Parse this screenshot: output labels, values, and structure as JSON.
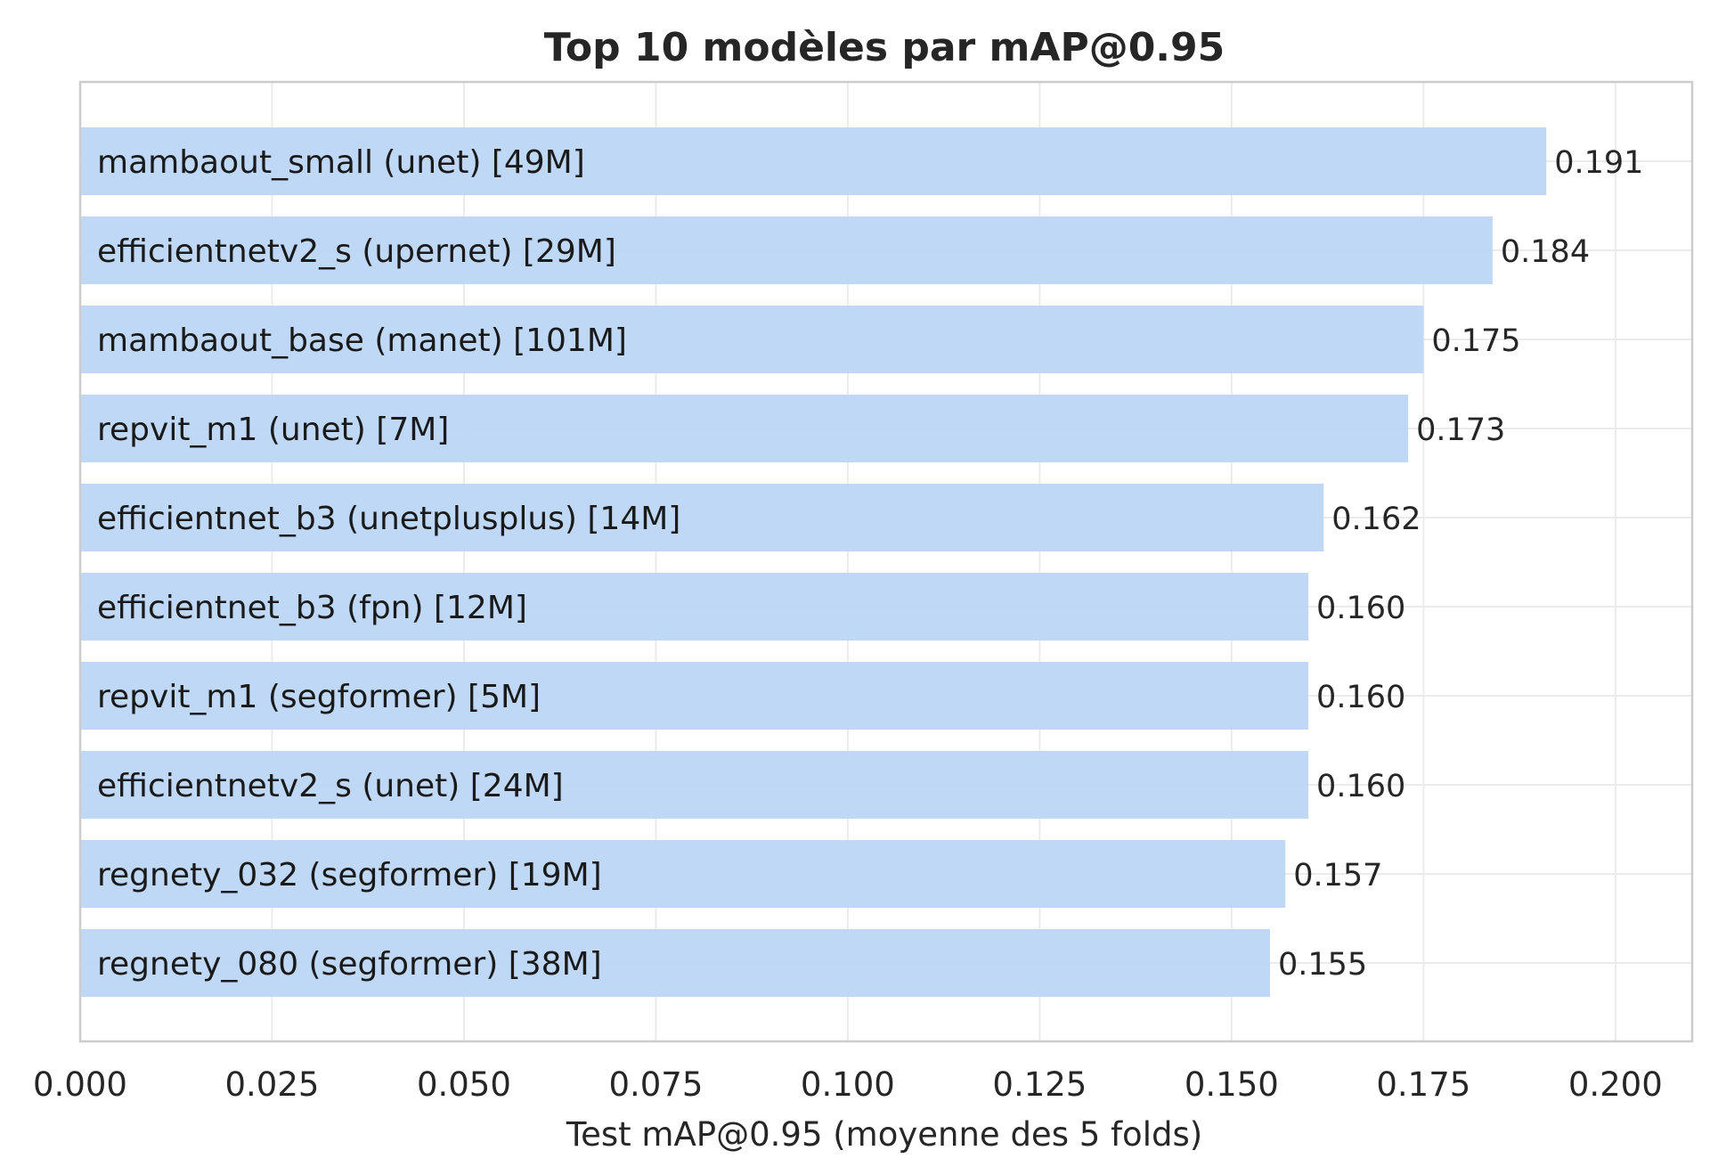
{
  "chart_data": {
    "type": "bar",
    "orientation": "horizontal",
    "title": "Top 10 modèles par mAP@0.95",
    "xlabel": "Test mAP@0.95 (moyenne des 5 folds)",
    "ylabel": "",
    "xlim": [
      0,
      0.21
    ],
    "xticks": [
      "0.000",
      "0.025",
      "0.050",
      "0.075",
      "0.100",
      "0.125",
      "0.150",
      "0.175",
      "0.200"
    ],
    "grid": true,
    "bar_color": "#bad6f6",
    "categories": [
      "mambaout_small (unet) [49M]",
      "efficientnetv2_s (upernet) [29M]",
      "mambaout_base (manet) [101M]",
      "repvit_m1 (unet) [7M]",
      "efficientnet_b3 (unetplusplus) [14M]",
      "efficientnet_b3 (fpn) [12M]",
      "repvit_m1 (segformer) [5M]",
      "efficientnetv2_s (unet) [24M]",
      "regnety_032 (segformer) [19M]",
      "regnety_080 (segformer) [38M]"
    ],
    "values": [
      0.191,
      0.184,
      0.175,
      0.173,
      0.162,
      0.16,
      0.16,
      0.16,
      0.157,
      0.155
    ],
    "value_labels": [
      "0.191",
      "0.184",
      "0.175",
      "0.173",
      "0.162",
      "0.160",
      "0.160",
      "0.160",
      "0.157",
      "0.155"
    ]
  }
}
